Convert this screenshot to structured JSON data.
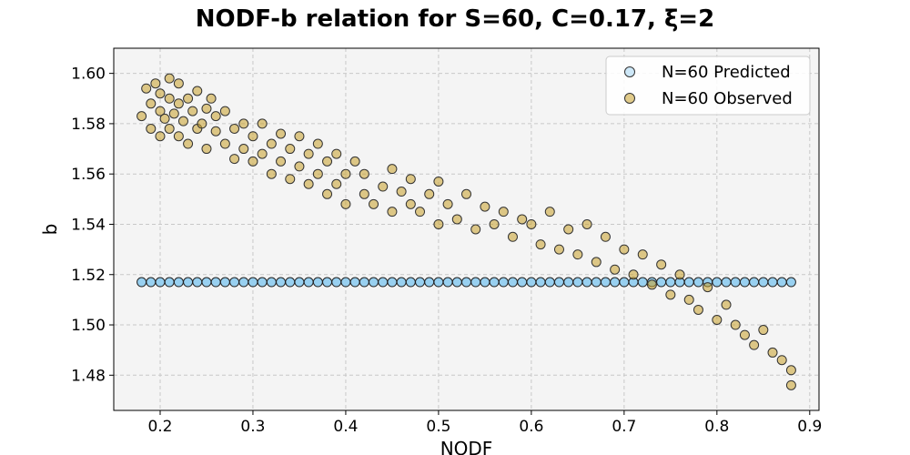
{
  "chart_data": {
    "type": "scatter",
    "title": "NODF-b relation for S=60, C=0.17, ξ=2",
    "xlabel": "NODF",
    "ylabel": "b",
    "xlim": [
      0.15,
      0.91
    ],
    "ylim": [
      1.466,
      1.61
    ],
    "xticks": [
      0.2,
      0.3,
      0.4,
      0.5,
      0.6,
      0.7,
      0.8,
      0.9
    ],
    "yticks": [
      1.48,
      1.5,
      1.52,
      1.54,
      1.56,
      1.58,
      1.6
    ],
    "grid": true,
    "legend_position": "top-right",
    "background": "#f4f4f4",
    "series": [
      {
        "name": "N=60 Predicted",
        "color": "#87c9ef",
        "x": [
          0.18,
          0.19,
          0.2,
          0.21,
          0.22,
          0.23,
          0.24,
          0.25,
          0.26,
          0.27,
          0.28,
          0.29,
          0.3,
          0.31,
          0.32,
          0.33,
          0.34,
          0.35,
          0.36,
          0.37,
          0.38,
          0.39,
          0.4,
          0.41,
          0.42,
          0.43,
          0.44,
          0.45,
          0.46,
          0.47,
          0.48,
          0.49,
          0.5,
          0.51,
          0.52,
          0.53,
          0.54,
          0.55,
          0.56,
          0.57,
          0.58,
          0.59,
          0.6,
          0.61,
          0.62,
          0.63,
          0.64,
          0.65,
          0.66,
          0.67,
          0.68,
          0.69,
          0.7,
          0.71,
          0.72,
          0.73,
          0.74,
          0.75,
          0.76,
          0.77,
          0.78,
          0.79,
          0.8,
          0.81,
          0.82,
          0.83,
          0.84,
          0.85,
          0.86,
          0.87,
          0.88
        ],
        "y_constant": 1.517
      },
      {
        "name": "N=60 Observed",
        "color": "#c8a02a",
        "x": [
          0.18,
          0.185,
          0.19,
          0.19,
          0.195,
          0.2,
          0.2,
          0.2,
          0.205,
          0.21,
          0.21,
          0.21,
          0.215,
          0.22,
          0.22,
          0.22,
          0.225,
          0.23,
          0.23,
          0.235,
          0.24,
          0.24,
          0.245,
          0.25,
          0.25,
          0.255,
          0.26,
          0.26,
          0.27,
          0.27,
          0.28,
          0.28,
          0.29,
          0.29,
          0.3,
          0.3,
          0.31,
          0.31,
          0.32,
          0.32,
          0.33,
          0.33,
          0.34,
          0.34,
          0.35,
          0.35,
          0.36,
          0.36,
          0.37,
          0.37,
          0.38,
          0.38,
          0.39,
          0.39,
          0.4,
          0.4,
          0.41,
          0.42,
          0.42,
          0.43,
          0.44,
          0.45,
          0.45,
          0.46,
          0.47,
          0.47,
          0.48,
          0.49,
          0.5,
          0.5,
          0.51,
          0.52,
          0.53,
          0.54,
          0.55,
          0.56,
          0.57,
          0.58,
          0.59,
          0.6,
          0.61,
          0.62,
          0.63,
          0.64,
          0.65,
          0.66,
          0.67,
          0.68,
          0.69,
          0.7,
          0.71,
          0.72,
          0.73,
          0.74,
          0.75,
          0.76,
          0.77,
          0.78,
          0.79,
          0.8,
          0.81,
          0.82,
          0.83,
          0.84,
          0.85,
          0.86,
          0.87,
          0.88,
          0.88
        ],
        "y": [
          1.583,
          1.594,
          1.588,
          1.578,
          1.596,
          1.585,
          1.575,
          1.592,
          1.582,
          1.59,
          1.578,
          1.598,
          1.584,
          1.588,
          1.575,
          1.596,
          1.581,
          1.59,
          1.572,
          1.585,
          1.578,
          1.593,
          1.58,
          1.586,
          1.57,
          1.59,
          1.577,
          1.583,
          1.572,
          1.585,
          1.578,
          1.566,
          1.58,
          1.57,
          1.575,
          1.565,
          1.58,
          1.568,
          1.572,
          1.56,
          1.576,
          1.565,
          1.57,
          1.558,
          1.575,
          1.563,
          1.568,
          1.556,
          1.572,
          1.56,
          1.565,
          1.552,
          1.568,
          1.556,
          1.56,
          1.548,
          1.565,
          1.552,
          1.56,
          1.548,
          1.555,
          1.562,
          1.545,
          1.553,
          1.548,
          1.558,
          1.545,
          1.552,
          1.54,
          1.557,
          1.548,
          1.542,
          1.552,
          1.538,
          1.547,
          1.54,
          1.545,
          1.535,
          1.542,
          1.54,
          1.532,
          1.545,
          1.53,
          1.538,
          1.528,
          1.54,
          1.525,
          1.535,
          1.522,
          1.53,
          1.52,
          1.528,
          1.516,
          1.524,
          1.512,
          1.52,
          1.51,
          1.506,
          1.515,
          1.502,
          1.508,
          1.5,
          1.496,
          1.492,
          1.498,
          1.489,
          1.486,
          1.482,
          1.476
        ]
      }
    ]
  }
}
